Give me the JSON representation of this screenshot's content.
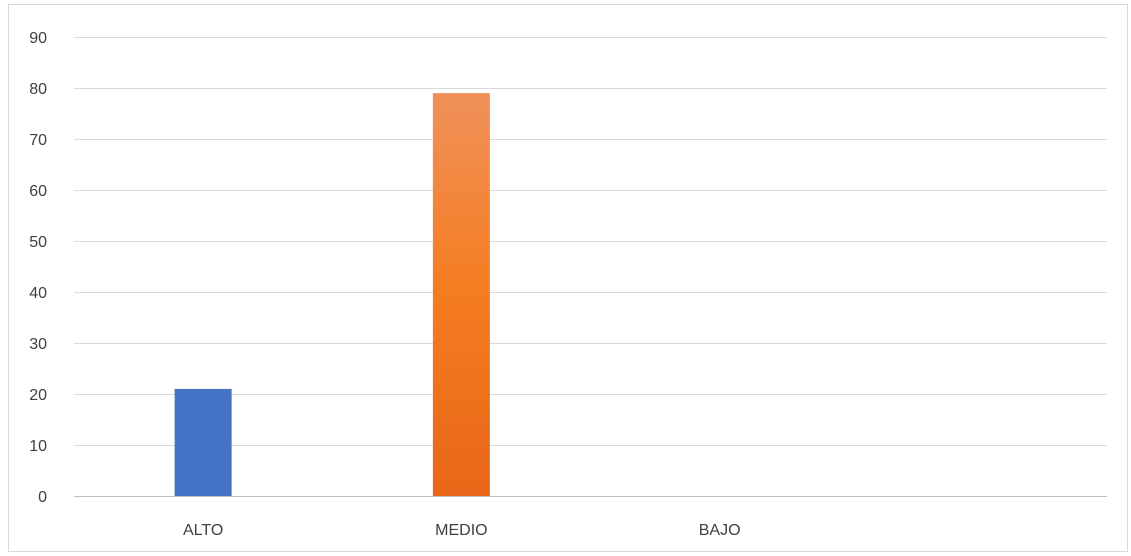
{
  "chart_data": {
    "type": "bar",
    "categories": [
      "ALTO",
      "MEDIO",
      "BAJO",
      ""
    ],
    "values": [
      21,
      79,
      0,
      0
    ],
    "title": "",
    "xlabel": "",
    "ylabel": "",
    "ylim": [
      0,
      90
    ],
    "yticks": [
      0,
      10,
      20,
      30,
      40,
      50,
      60,
      70,
      80,
      90
    ],
    "grid": true,
    "legend": "none",
    "colors": {
      "ALTO": {
        "top": "#4472c4",
        "bottom": "#4472c4"
      },
      "MEDIO": {
        "top": "#f0915a",
        "bottom": "#e8661a",
        "mid": "#f47c20"
      },
      "BAJO": {
        "top": "#a5a5a5",
        "bottom": "#a5a5a5"
      }
    },
    "gridline_color": "#d9d9d9",
    "axis_color": "#bfbfbf"
  }
}
